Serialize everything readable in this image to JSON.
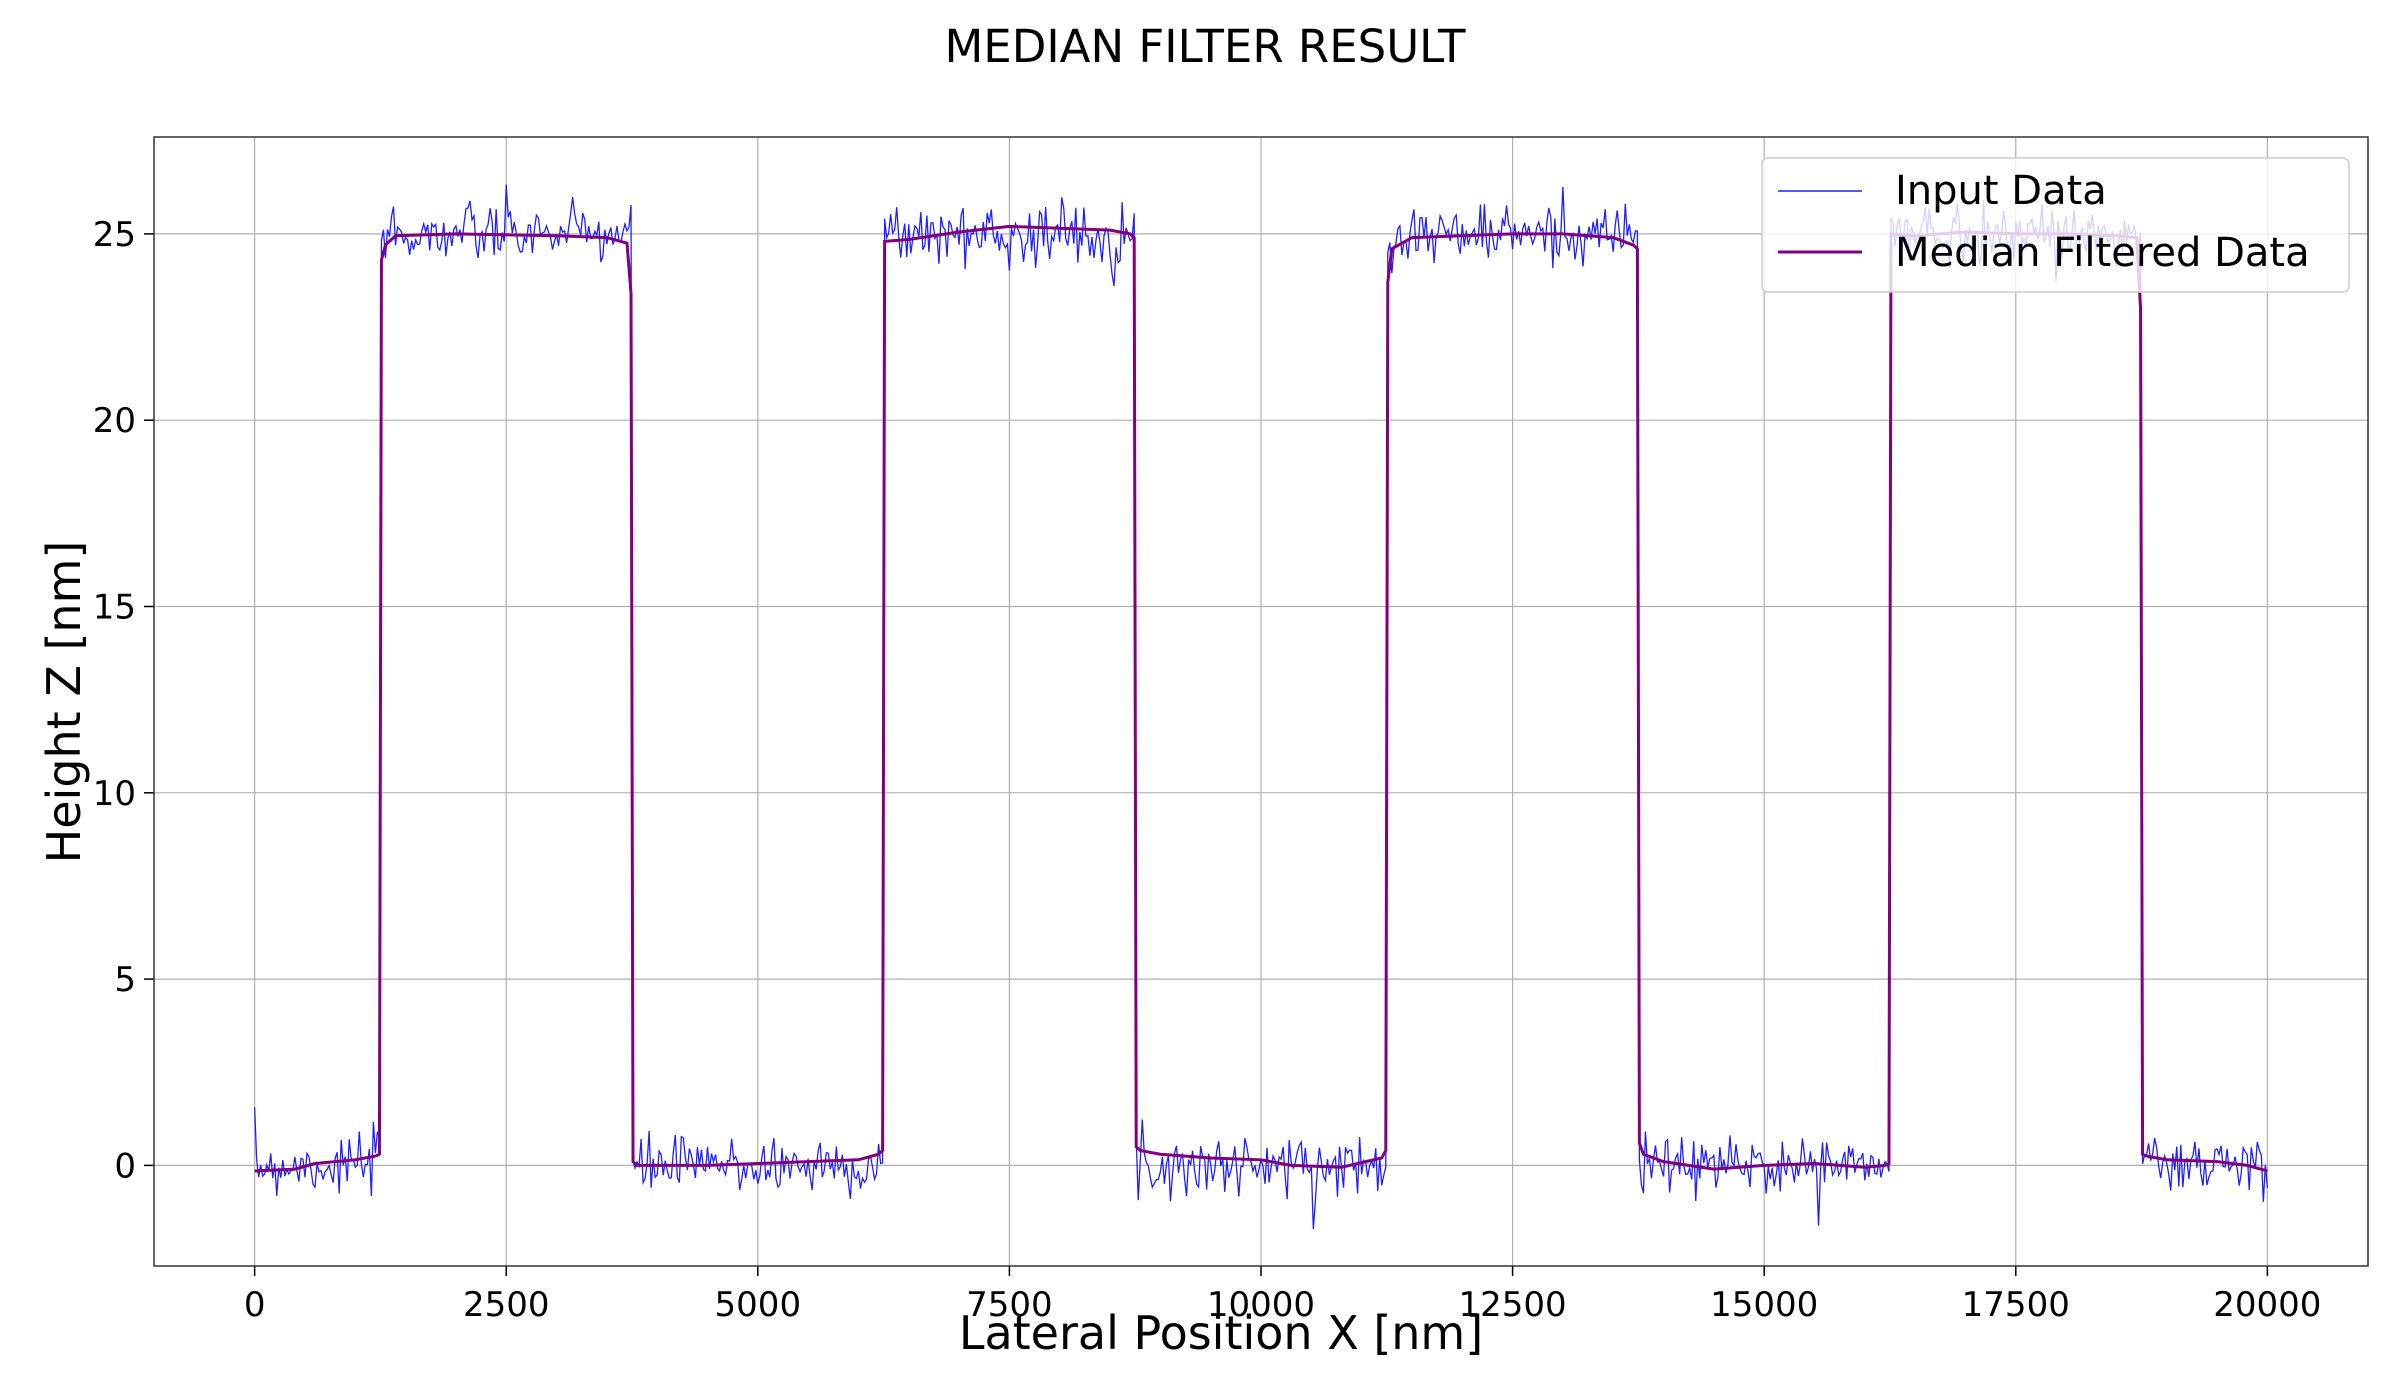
{
  "chart_data": {
    "type": "line",
    "title": "MEDIAN FILTER RESULT",
    "xlabel": "Lateral Position X [nm]",
    "ylabel": "Height Z [nm]",
    "xlim": [
      -1000,
      21000
    ],
    "ylim": [
      -2.7,
      27.6
    ],
    "xticks": [
      0,
      2500,
      5000,
      7500,
      10000,
      12500,
      15000,
      17500,
      20000
    ],
    "yticks": [
      0,
      5,
      10,
      15,
      20,
      25
    ],
    "grid": true,
    "legend_position": "top-right",
    "sampling": {
      "x_start": 0,
      "x_step": 20,
      "count": 1001
    },
    "series": [
      {
        "name": "Input Data",
        "color": "#1f1fff",
        "description": "noisy periodic square profile (period 5000 nm, step at 1250 nm / 3750 nm, ~0.4 nm noise)",
        "segments": [
          {
            "x0": 0,
            "x1": 1250,
            "level": 0.0
          },
          {
            "x0": 1250,
            "x1": 3750,
            "level": 25.0
          },
          {
            "x0": 3750,
            "x1": 6250,
            "level": 0.0
          },
          {
            "x0": 6250,
            "x1": 8750,
            "level": 25.0
          },
          {
            "x0": 8750,
            "x1": 11250,
            "level": 0.0
          },
          {
            "x0": 11250,
            "x1": 13750,
            "level": 25.0
          },
          {
            "x0": 13750,
            "x1": 16250,
            "level": 0.0
          },
          {
            "x0": 16250,
            "x1": 18750,
            "level": 25.0
          },
          {
            "x0": 18750,
            "x1": 20000,
            "level": 0.0
          }
        ],
        "noise_sd": 0.4
      },
      {
        "name": "Median Filtered Data",
        "color": "#800080",
        "points": [
          [
            0,
            -0.15
          ],
          [
            400,
            -0.1
          ],
          [
            600,
            0.05
          ],
          [
            1000,
            0.15
          ],
          [
            1200,
            0.25
          ],
          [
            1240,
            0.3
          ],
          [
            1260,
            24.3
          ],
          [
            1300,
            24.7
          ],
          [
            1400,
            24.95
          ],
          [
            2000,
            25.0
          ],
          [
            3000,
            24.95
          ],
          [
            3500,
            24.9
          ],
          [
            3700,
            24.75
          ],
          [
            3740,
            23.4
          ],
          [
            3760,
            0.1
          ],
          [
            3800,
            0.0
          ],
          [
            4500,
            0.0
          ],
          [
            5000,
            0.05
          ],
          [
            5500,
            0.1
          ],
          [
            6000,
            0.15
          ],
          [
            6200,
            0.3
          ],
          [
            6240,
            0.4
          ],
          [
            6260,
            24.8
          ],
          [
            6500,
            24.85
          ],
          [
            7000,
            25.05
          ],
          [
            7500,
            25.2
          ],
          [
            8000,
            25.15
          ],
          [
            8500,
            25.1
          ],
          [
            8700,
            25.0
          ],
          [
            8740,
            24.9
          ],
          [
            8760,
            0.5
          ],
          [
            8800,
            0.4
          ],
          [
            9000,
            0.3
          ],
          [
            9500,
            0.2
          ],
          [
            10000,
            0.15
          ],
          [
            10300,
            0.0
          ],
          [
            10800,
            -0.05
          ],
          [
            11200,
            0.2
          ],
          [
            11240,
            0.4
          ],
          [
            11260,
            23.7
          ],
          [
            11300,
            24.6
          ],
          [
            11500,
            24.9
          ],
          [
            12000,
            24.95
          ],
          [
            12500,
            25.0
          ],
          [
            13000,
            25.0
          ],
          [
            13500,
            24.9
          ],
          [
            13700,
            24.7
          ],
          [
            13740,
            24.6
          ],
          [
            13760,
            0.6
          ],
          [
            13800,
            0.3
          ],
          [
            14000,
            0.1
          ],
          [
            14500,
            -0.1
          ],
          [
            15000,
            0.0
          ],
          [
            15500,
            0.05
          ],
          [
            16000,
            -0.05
          ],
          [
            16200,
            0.0
          ],
          [
            16240,
            0.05
          ],
          [
            16260,
            25.0
          ],
          [
            16500,
            24.95
          ],
          [
            17000,
            25.05
          ],
          [
            17500,
            25.0
          ],
          [
            18000,
            25.0
          ],
          [
            18500,
            24.95
          ],
          [
            18700,
            24.9
          ],
          [
            18740,
            23.0
          ],
          [
            18760,
            0.3
          ],
          [
            18800,
            0.25
          ],
          [
            19000,
            0.15
          ],
          [
            19500,
            0.1
          ],
          [
            19800,
            0.0
          ],
          [
            20000,
            -0.15
          ]
        ]
      }
    ]
  }
}
